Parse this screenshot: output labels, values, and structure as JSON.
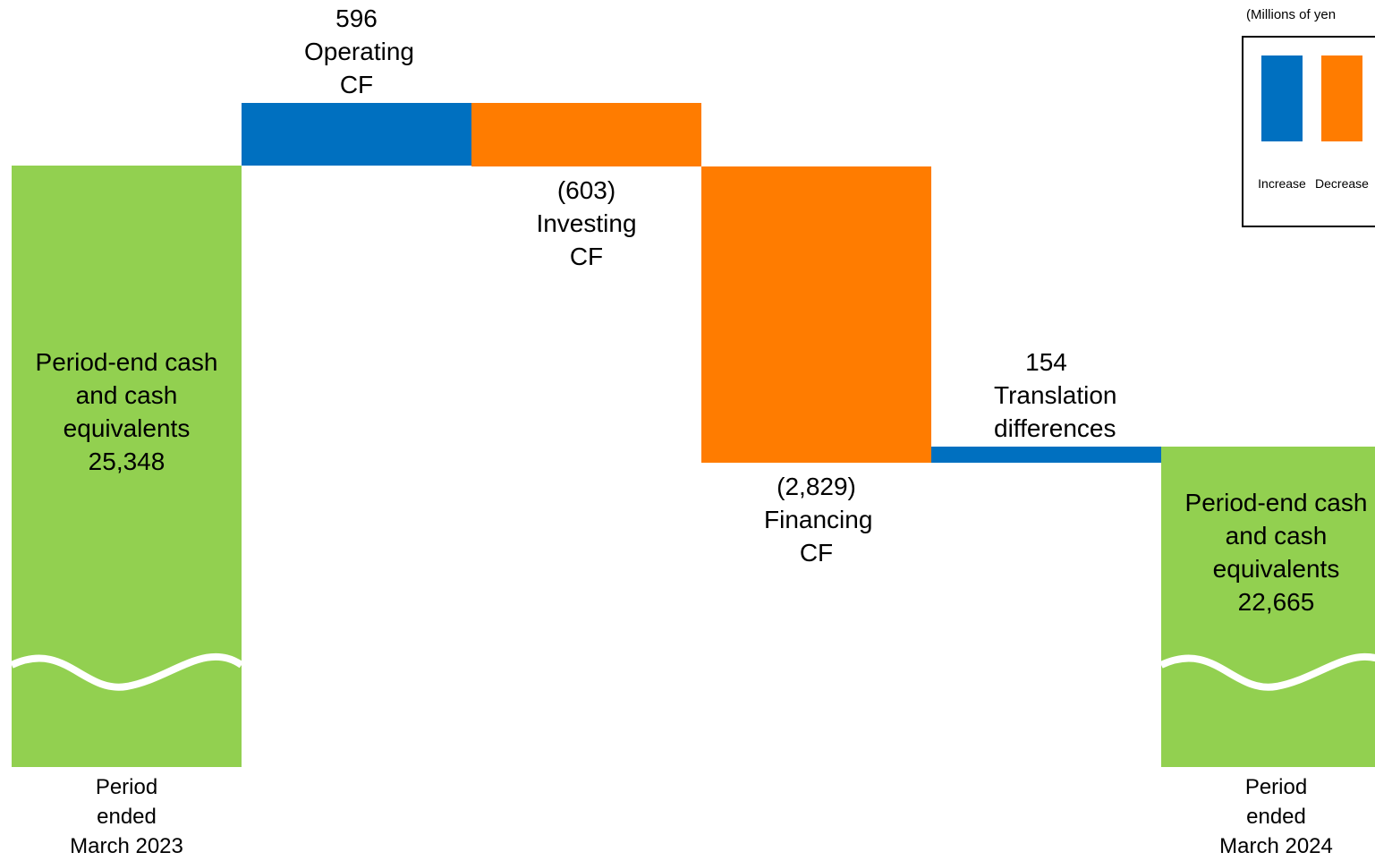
{
  "chart_data": {
    "type": "waterfall",
    "unit_label": "(Millions of yen",
    "total_label": "Period-end cash and cash equivalents",
    "categories": [
      "Period ended March 2023",
      "Operating CF",
      "Investing CF",
      "Financing CF",
      "Translation differences",
      "Period ended March 2024"
    ],
    "values": [
      25348,
      596,
      -603,
      -2829,
      154,
      22665
    ],
    "value_labels": [
      "25,348",
      "596",
      "(603)",
      "(2,829)",
      "154",
      "22,665"
    ],
    "total_color": "#92d050",
    "legend": [
      {
        "name": "Increase",
        "color": "#0070c0"
      },
      {
        "name": "Decrease",
        "color": "#ff7c00"
      }
    ]
  }
}
